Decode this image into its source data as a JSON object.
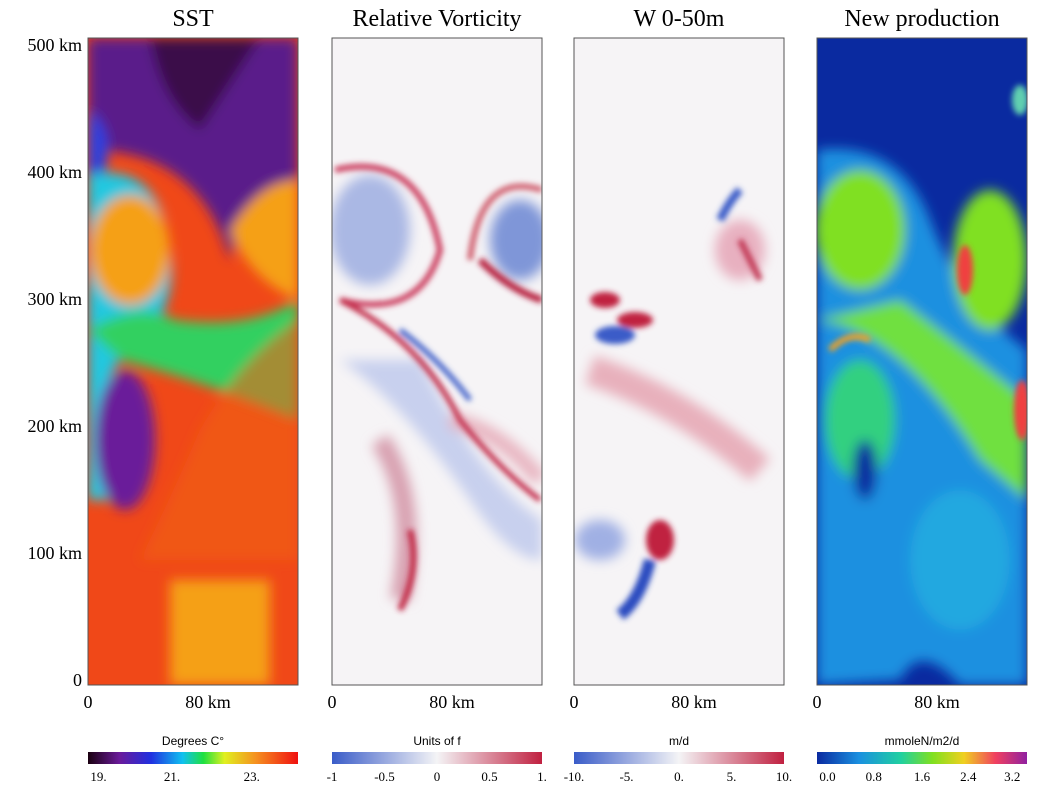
{
  "y_axis": {
    "ticks": [
      "500 km",
      "400 km",
      "300 km",
      "200 km",
      "100 km",
      "0"
    ]
  },
  "panels": [
    {
      "title": "SST",
      "x_ticks": [
        "0",
        "80 km"
      ],
      "colorbar": {
        "label": "Degrees C°",
        "ticks": [
          "19.",
          "21.",
          "23."
        ]
      }
    },
    {
      "title": "Relative Vorticity",
      "x_ticks": [
        "0",
        "80 km"
      ],
      "colorbar": {
        "label": "Units of f",
        "ticks": [
          "-1",
          "-0.5",
          "0",
          "0.5",
          "1."
        ]
      }
    },
    {
      "title": "W 0-50m",
      "x_ticks": [
        "0",
        "80 km"
      ],
      "colorbar": {
        "label": "m/d",
        "ticks": [
          "-10.",
          "-5.",
          "0.",
          "5.",
          "10."
        ]
      }
    },
    {
      "title": "New production",
      "x_ticks": [
        "0",
        "80 km"
      ],
      "colorbar": {
        "label": "mmoleN/m2/d",
        "ticks": [
          "0.0",
          "0.8",
          "1.6",
          "2.4",
          "3.2"
        ]
      }
    }
  ]
}
